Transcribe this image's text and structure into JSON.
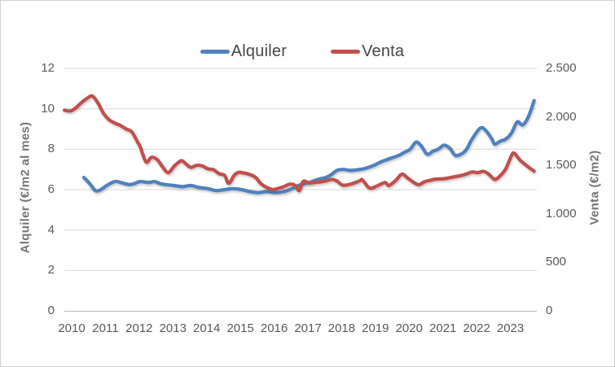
{
  "window": {
    "background": "#ffffff",
    "border_color": "#d0d0d0"
  },
  "chart_data": {
    "type": "line",
    "title": "",
    "legend_position": "top-center",
    "grid": "horizontal-on",
    "grid_color": "#D9D9D9",
    "axis_line_color": "#BFBFBF",
    "x_axis": {
      "min": 2010,
      "max": 2024,
      "labels": [
        "2010",
        "2011",
        "2012",
        "2013",
        "2014",
        "2015",
        "2016",
        "2017",
        "2018",
        "2019",
        "2020",
        "2021",
        "2022",
        "2023"
      ]
    },
    "y_left_axis": {
      "title": "Alquiler (€/m2 al mes)",
      "min": 0,
      "max": 12,
      "tick_values": [
        0,
        2,
        4,
        6,
        8,
        10,
        12
      ],
      "tick_labels": [
        "0",
        "2",
        "4",
        "6",
        "8",
        "10",
        "12"
      ]
    },
    "y_right_axis": {
      "title": "Venta (€/m2)",
      "min": 0,
      "max": 2500,
      "tick_values": [
        0,
        500,
        1000,
        1500,
        2000,
        2500
      ],
      "tick_labels": [
        "0",
        "500",
        "1.000",
        "1.500",
        "2.000",
        "2.500"
      ]
    },
    "series": [
      {
        "name": "Alquiler",
        "axis": "left",
        "unit": "€/m2 al mes",
        "color": "#4F81BD",
        "points": [
          [
            2010.58,
            6.6
          ],
          [
            2010.75,
            6.3
          ],
          [
            2010.92,
            5.95
          ],
          [
            2011.08,
            6.0
          ],
          [
            2011.25,
            6.2
          ],
          [
            2011.5,
            6.4
          ],
          [
            2011.67,
            6.35
          ],
          [
            2011.92,
            6.25
          ],
          [
            2012.08,
            6.3
          ],
          [
            2012.25,
            6.4
          ],
          [
            2012.5,
            6.35
          ],
          [
            2012.67,
            6.4
          ],
          [
            2012.83,
            6.3
          ],
          [
            2013.0,
            6.25
          ],
          [
            2013.25,
            6.2
          ],
          [
            2013.5,
            6.15
          ],
          [
            2013.75,
            6.2
          ],
          [
            2014.0,
            6.1
          ],
          [
            2014.25,
            6.05
          ],
          [
            2014.5,
            5.95
          ],
          [
            2014.75,
            6.0
          ],
          [
            2015.0,
            6.05
          ],
          [
            2015.25,
            6.0
          ],
          [
            2015.5,
            5.9
          ],
          [
            2015.75,
            5.85
          ],
          [
            2016.0,
            5.9
          ],
          [
            2016.25,
            5.85
          ],
          [
            2016.5,
            5.9
          ],
          [
            2016.75,
            6.05
          ],
          [
            2017.0,
            6.25
          ],
          [
            2017.25,
            6.35
          ],
          [
            2017.5,
            6.5
          ],
          [
            2017.75,
            6.6
          ],
          [
            2017.92,
            6.75
          ],
          [
            2018.08,
            6.95
          ],
          [
            2018.25,
            7.0
          ],
          [
            2018.5,
            6.95
          ],
          [
            2018.75,
            7.0
          ],
          [
            2018.92,
            7.05
          ],
          [
            2019.17,
            7.2
          ],
          [
            2019.42,
            7.4
          ],
          [
            2019.67,
            7.55
          ],
          [
            2019.92,
            7.7
          ],
          [
            2020.08,
            7.85
          ],
          [
            2020.25,
            8.0
          ],
          [
            2020.42,
            8.35
          ],
          [
            2020.58,
            8.15
          ],
          [
            2020.75,
            7.75
          ],
          [
            2020.92,
            7.9
          ],
          [
            2021.08,
            8.0
          ],
          [
            2021.25,
            8.2
          ],
          [
            2021.42,
            8.05
          ],
          [
            2021.58,
            7.7
          ],
          [
            2021.75,
            7.75
          ],
          [
            2021.92,
            8.0
          ],
          [
            2022.08,
            8.5
          ],
          [
            2022.33,
            9.05
          ],
          [
            2022.5,
            8.9
          ],
          [
            2022.67,
            8.5
          ],
          [
            2022.75,
            8.25
          ],
          [
            2022.92,
            8.4
          ],
          [
            2023.08,
            8.5
          ],
          [
            2023.25,
            8.8
          ],
          [
            2023.42,
            9.35
          ],
          [
            2023.58,
            9.2
          ],
          [
            2023.75,
            9.6
          ],
          [
            2023.92,
            10.4
          ]
        ]
      },
      {
        "name": "Venta",
        "axis": "right",
        "unit": "€/m2",
        "color": "#C0504D",
        "points": [
          [
            2010.0,
            2070
          ],
          [
            2010.17,
            2060
          ],
          [
            2010.33,
            2090
          ],
          [
            2010.5,
            2145
          ],
          [
            2010.67,
            2190
          ],
          [
            2010.83,
            2215
          ],
          [
            2011.0,
            2140
          ],
          [
            2011.17,
            2030
          ],
          [
            2011.33,
            1970
          ],
          [
            2011.5,
            1935
          ],
          [
            2011.67,
            1910
          ],
          [
            2011.83,
            1875
          ],
          [
            2012.0,
            1845
          ],
          [
            2012.17,
            1740
          ],
          [
            2012.25,
            1690
          ],
          [
            2012.42,
            1535
          ],
          [
            2012.58,
            1583
          ],
          [
            2012.75,
            1560
          ],
          [
            2012.92,
            1480
          ],
          [
            2013.08,
            1425
          ],
          [
            2013.25,
            1490
          ],
          [
            2013.42,
            1540
          ],
          [
            2013.5,
            1545
          ],
          [
            2013.62,
            1510
          ],
          [
            2013.75,
            1480
          ],
          [
            2013.92,
            1500
          ],
          [
            2014.08,
            1495
          ],
          [
            2014.25,
            1465
          ],
          [
            2014.42,
            1455
          ],
          [
            2014.58,
            1415
          ],
          [
            2014.75,
            1395
          ],
          [
            2014.87,
            1315
          ],
          [
            2015.04,
            1400
          ],
          [
            2015.17,
            1428
          ],
          [
            2015.33,
            1420
          ],
          [
            2015.5,
            1405
          ],
          [
            2015.67,
            1375
          ],
          [
            2015.83,
            1310
          ],
          [
            2016.0,
            1272
          ],
          [
            2016.17,
            1250
          ],
          [
            2016.33,
            1262
          ],
          [
            2016.5,
            1280
          ],
          [
            2016.67,
            1305
          ],
          [
            2016.83,
            1295
          ],
          [
            2016.96,
            1240
          ],
          [
            2017.08,
            1335
          ],
          [
            2017.25,
            1320
          ],
          [
            2017.42,
            1325
          ],
          [
            2017.58,
            1330
          ],
          [
            2017.75,
            1340
          ],
          [
            2017.92,
            1355
          ],
          [
            2018.08,
            1338
          ],
          [
            2018.25,
            1295
          ],
          [
            2018.5,
            1308
          ],
          [
            2018.75,
            1340
          ],
          [
            2018.83,
            1350
          ],
          [
            2019.04,
            1267
          ],
          [
            2019.25,
            1285
          ],
          [
            2019.5,
            1322
          ],
          [
            2019.62,
            1292
          ],
          [
            2019.83,
            1348
          ],
          [
            2020.0,
            1410
          ],
          [
            2020.17,
            1370
          ],
          [
            2020.33,
            1330
          ],
          [
            2020.5,
            1300
          ],
          [
            2020.67,
            1330
          ],
          [
            2020.83,
            1345
          ],
          [
            2021.0,
            1358
          ],
          [
            2021.25,
            1362
          ],
          [
            2021.5,
            1378
          ],
          [
            2021.75,
            1395
          ],
          [
            2021.92,
            1412
          ],
          [
            2022.08,
            1432
          ],
          [
            2022.25,
            1425
          ],
          [
            2022.42,
            1438
          ],
          [
            2022.58,
            1408
          ],
          [
            2022.75,
            1355
          ],
          [
            2022.92,
            1395
          ],
          [
            2023.08,
            1465
          ],
          [
            2023.25,
            1600
          ],
          [
            2023.33,
            1625
          ],
          [
            2023.5,
            1555
          ],
          [
            2023.67,
            1505
          ],
          [
            2023.83,
            1462
          ],
          [
            2023.92,
            1440
          ]
        ]
      }
    ]
  }
}
